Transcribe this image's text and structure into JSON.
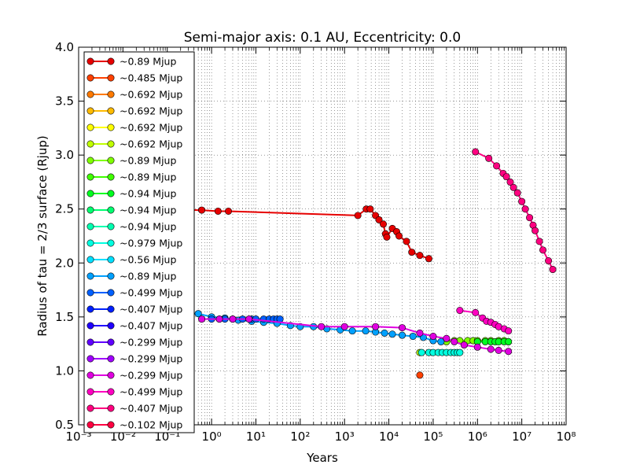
{
  "chart_data": {
    "type": "line",
    "title": "Semi-major axis: 0.1 AU, Eccentricity: 0.0",
    "xlabel": "Years",
    "ylabel": "Radius of tau = 2/3 surface (Rjup)",
    "xscale": "log",
    "xlim": [
      0.001,
      100000000
    ],
    "ylim": [
      0.5,
      4.0
    ],
    "x_ticks": [
      "10⁻³",
      "10⁻²",
      "10⁻¹",
      "10⁰",
      "10¹",
      "10²",
      "10³",
      "10⁴",
      "10⁵",
      "10⁶",
      "10⁷",
      "10⁸"
    ],
    "y_ticks": [
      "0.5",
      "1.0",
      "1.5",
      "2.0",
      "2.5",
      "3.0",
      "3.5",
      "4.0"
    ],
    "grid": true,
    "legend_position": "left",
    "series": [
      {
        "name": "~0.89 Mjup",
        "color": "#e60000",
        "x": [
          0.002,
          0.6,
          1.4,
          2.4,
          2000,
          3100,
          3800,
          5000,
          6000,
          7500,
          8400,
          9000,
          12000,
          15000,
          17000,
          25000,
          33000,
          50000,
          80000
        ],
        "y": [
          2.5,
          2.49,
          2.48,
          2.48,
          2.44,
          2.5,
          2.5,
          2.44,
          2.4,
          2.36,
          2.27,
          2.24,
          2.32,
          2.29,
          2.25,
          2.2,
          2.1,
          2.07,
          2.04
        ]
      },
      {
        "name": "~0.485 Mjup",
        "color": "#ff4000",
        "x": [
          50000
        ],
        "y": [
          0.96
        ]
      },
      {
        "name": "~0.692 Mjup",
        "color": "#ff7a00",
        "x": [],
        "y": []
      },
      {
        "name": "~0.692 Mjup",
        "color": "#ffbb00",
        "x": [],
        "y": []
      },
      {
        "name": "~0.692 Mjup",
        "color": "#ffff00",
        "x": [],
        "y": []
      },
      {
        "name": "~0.692 Mjup",
        "color": "#c0ff00",
        "x": [
          50000
        ],
        "y": [
          1.17
        ]
      },
      {
        "name": "~0.89 Mjup",
        "color": "#80ff00",
        "x": [
          200000,
          300000,
          400000,
          600000,
          800000,
          1000000,
          1500000,
          2000000,
          3000000,
          4000000,
          5000000
        ],
        "y": [
          1.27,
          1.28,
          1.28,
          1.28,
          1.28,
          1.28,
          1.28,
          1.28,
          1.28,
          1.28,
          1.27
        ]
      },
      {
        "name": "~0.89 Mjup",
        "color": "#40ff00",
        "x": [],
        "y": []
      },
      {
        "name": "~0.94 Mjup",
        "color": "#00ff20",
        "x": [
          1000000,
          1500000,
          2000000,
          2500000,
          3000000,
          4000000,
          5000000
        ],
        "y": [
          1.27,
          1.27,
          1.27,
          1.27,
          1.27,
          1.27,
          1.27
        ]
      },
      {
        "name": "~0.94 Mjup",
        "color": "#00ff70",
        "x": [],
        "y": []
      },
      {
        "name": "~0.94 Mjup",
        "color": "#00ffb0",
        "x": [],
        "y": []
      },
      {
        "name": "~0.979 Mjup",
        "color": "#00ffe0",
        "x": [
          55000,
          80000,
          100000,
          130000,
          160000,
          200000,
          250000,
          300000,
          350000,
          400000
        ],
        "y": [
          1.17,
          1.17,
          1.17,
          1.17,
          1.17,
          1.17,
          1.17,
          1.17,
          1.17,
          1.17
        ]
      },
      {
        "name": "~0.56 Mjup",
        "color": "#00e0ff",
        "x": [],
        "y": []
      },
      {
        "name": "~0.89 Mjup",
        "color": "#00a0ff",
        "x": [
          0.3,
          0.5,
          1,
          2,
          4,
          8,
          15,
          30,
          60,
          100,
          200,
          400,
          800,
          1500,
          3000,
          5000,
          8000,
          12000,
          20000,
          35000,
          60000,
          100000,
          150000
        ],
        "y": [
          1.53,
          1.53,
          1.5,
          1.49,
          1.47,
          1.46,
          1.45,
          1.44,
          1.42,
          1.41,
          1.41,
          1.39,
          1.38,
          1.37,
          1.37,
          1.36,
          1.35,
          1.34,
          1.33,
          1.32,
          1.31,
          1.28,
          1.27
        ]
      },
      {
        "name": "~0.499 Mjup",
        "color": "#0060ff",
        "x": [
          1,
          1.5,
          2,
          3,
          5,
          8,
          10,
          15,
          20,
          25,
          30,
          35
        ],
        "y": [
          1.48,
          1.48,
          1.48,
          1.48,
          1.48,
          1.48,
          1.48,
          1.48,
          1.48,
          1.48,
          1.48,
          1.48
        ]
      },
      {
        "name": "~0.407 Mjup",
        "color": "#0020ff",
        "x": [],
        "y": []
      },
      {
        "name": "~0.407 Mjup",
        "color": "#2000ff",
        "x": [],
        "y": []
      },
      {
        "name": "~0.299 Mjup",
        "color": "#6000ff",
        "x": [],
        "y": []
      },
      {
        "name": "~0.299 Mjup",
        "color": "#a000ff",
        "x": [],
        "y": []
      },
      {
        "name": "~0.299 Mjup",
        "color": "#e000e0",
        "x": [
          0.6,
          1.5,
          3,
          7,
          300,
          1000,
          5000,
          20000,
          50000,
          100000,
          200000,
          300000,
          500000,
          1000000,
          2000000,
          3000000,
          5000000
        ],
        "y": [
          1.48,
          1.48,
          1.48,
          1.48,
          1.41,
          1.41,
          1.41,
          1.4,
          1.35,
          1.32,
          1.3,
          1.27,
          1.24,
          1.22,
          1.2,
          1.19,
          1.18
        ]
      },
      {
        "name": "~0.499 Mjup",
        "color": "#ff00c0",
        "x": [
          400000,
          900000,
          1300000,
          1600000,
          2000000,
          2500000,
          3000000,
          4000000,
          5000000
        ],
        "y": [
          1.56,
          1.54,
          1.49,
          1.46,
          1.45,
          1.43,
          1.41,
          1.39,
          1.37
        ]
      },
      {
        "name": "~0.407 Mjup",
        "color": "#ff0080",
        "x": [
          900000,
          1800000,
          2700000,
          3800000,
          4500000,
          5500000,
          6500000,
          8000000,
          10000000,
          12000000,
          15000000,
          18000000,
          20000000,
          25000000,
          30000000,
          40000000,
          50000000
        ],
        "y": [
          3.03,
          2.97,
          2.9,
          2.83,
          2.8,
          2.75,
          2.7,
          2.65,
          2.57,
          2.5,
          2.42,
          2.35,
          2.3,
          2.2,
          2.12,
          2.02,
          1.94
        ]
      },
      {
        "name": "~0.102 Mjup",
        "color": "#ff0040",
        "x": [],
        "y": []
      }
    ]
  }
}
